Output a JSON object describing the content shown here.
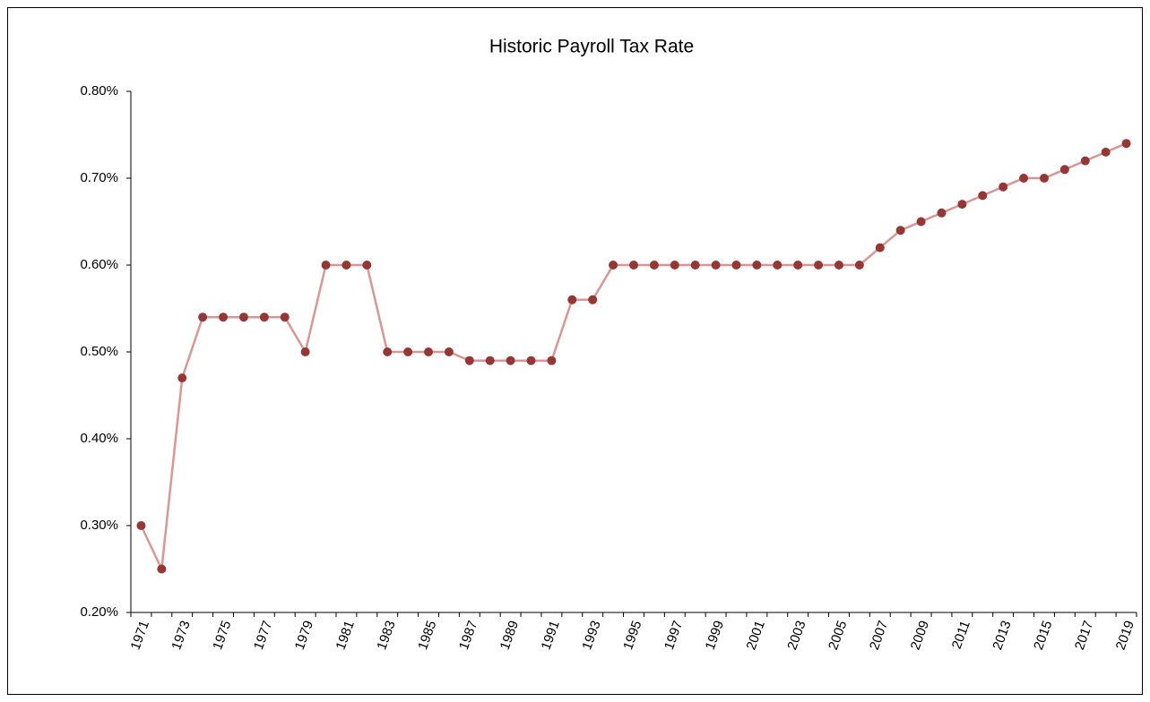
{
  "chart_data": {
    "type": "line",
    "title": "Historic Payroll Tax Rate",
    "categories": [
      "1971",
      null,
      "1973",
      null,
      "1975",
      null,
      "1977",
      null,
      "1979",
      null,
      "1981",
      null,
      "1983",
      null,
      "1985",
      null,
      "1987",
      null,
      "1989",
      null,
      "1991",
      null,
      "1993",
      null,
      "1995",
      null,
      "1997",
      null,
      "1999",
      null,
      "2001",
      null,
      "2003",
      null,
      "2005",
      null,
      "2007",
      null,
      "2009",
      null,
      "2011",
      null,
      "2013",
      null,
      "2015",
      null,
      "2017",
      null,
      "2019"
    ],
    "series": [
      {
        "color": "#d99694",
        "marker_color": "#953735",
        "values": [
          0.3,
          0.25,
          0.47,
          0.54,
          0.54,
          0.54,
          0.54,
          0.54,
          0.5,
          0.6,
          0.6,
          0.6,
          0.5,
          0.5,
          0.5,
          0.5,
          0.49,
          0.49,
          0.49,
          0.49,
          0.49,
          0.56,
          0.56,
          0.6,
          0.6,
          0.6,
          0.6,
          0.6,
          0.6,
          0.6,
          0.6,
          0.6,
          0.6,
          0.6,
          0.6,
          0.6,
          0.62,
          0.64,
          0.65,
          0.66,
          0.67,
          0.68,
          0.69,
          0.7,
          0.7,
          0.71,
          0.72,
          0.73,
          0.74
        ]
      }
    ],
    "ylim": [
      0.2,
      0.8
    ],
    "yticks": [
      {
        "value": 0.2,
        "label": "0.20%"
      },
      {
        "value": 0.3,
        "label": "0.30%"
      },
      {
        "value": 0.4,
        "label": "0.40%"
      },
      {
        "value": 0.5,
        "label": "0.50%"
      },
      {
        "value": 0.6,
        "label": "0.60%"
      },
      {
        "value": 0.7,
        "label": "0.70%"
      },
      {
        "value": 0.8,
        "label": "0.80%"
      }
    ],
    "grid": false
  }
}
